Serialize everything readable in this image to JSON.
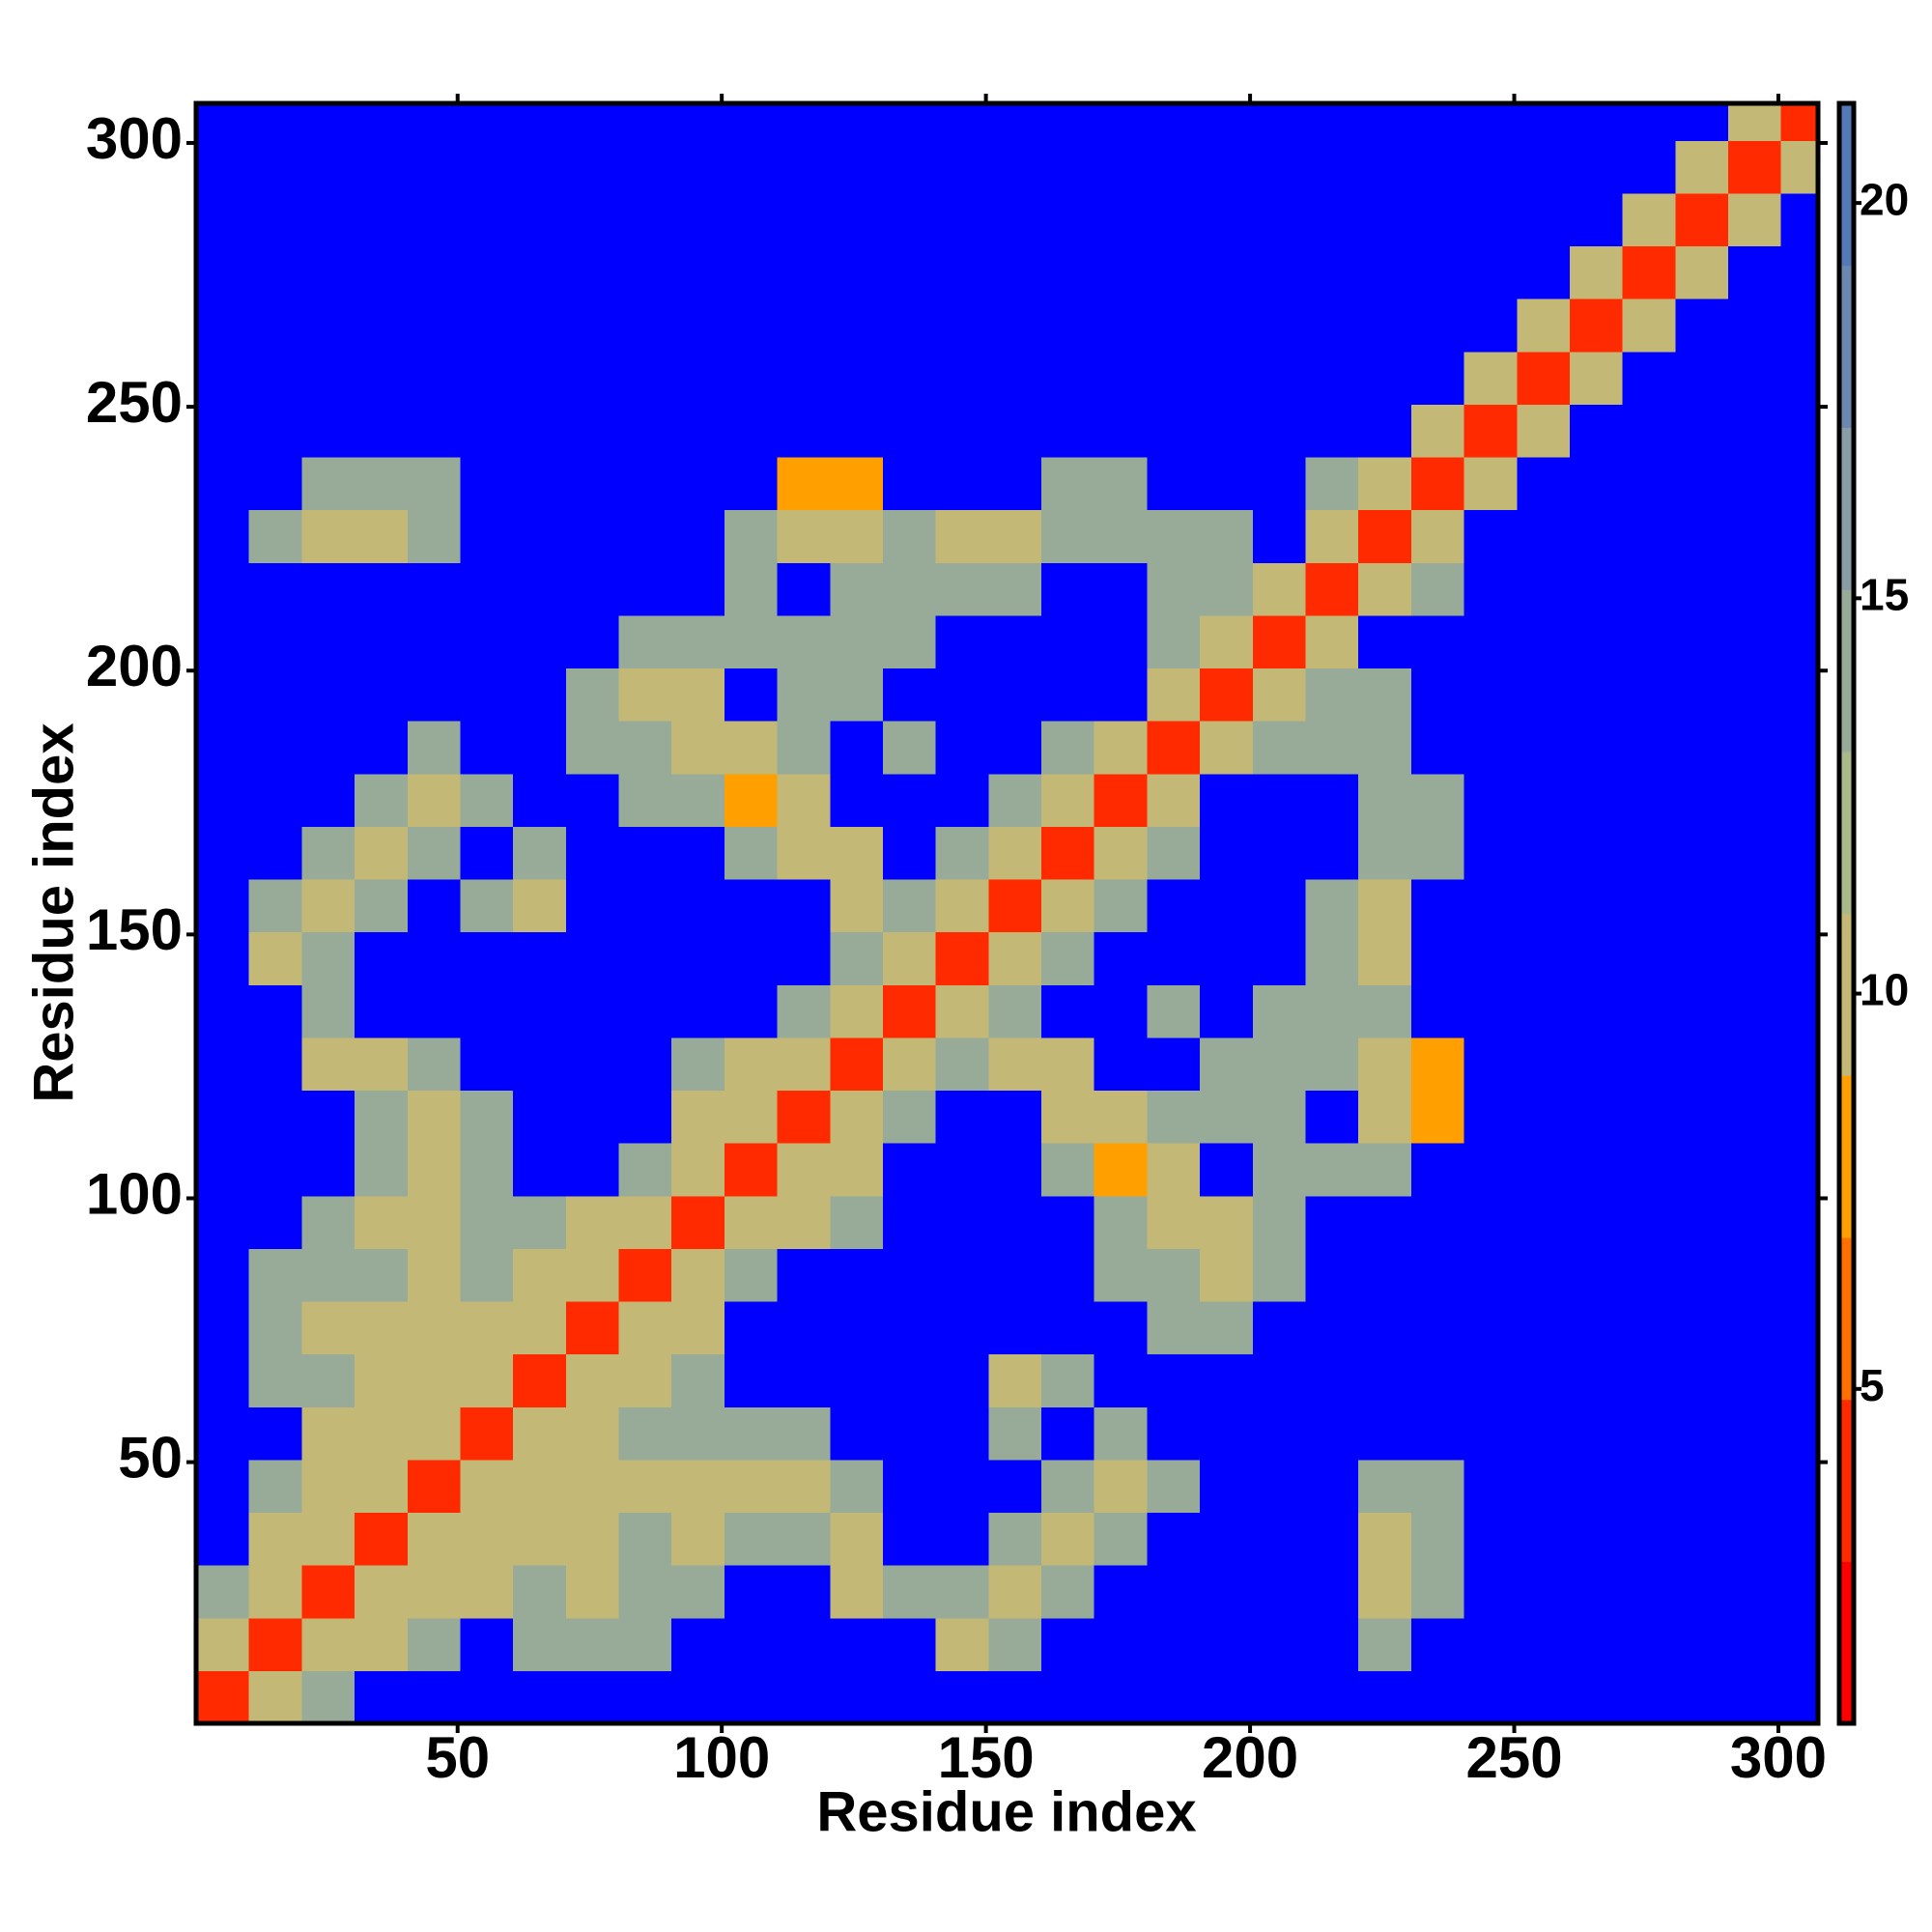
{
  "chart_data": {
    "type": "heatmap",
    "xlabel": "Residue index",
    "ylabel": "Residue index",
    "xbins": [
      0.5,
      10.5,
      20.5,
      30.5,
      40.5,
      50.5,
      60.5,
      70.5,
      80.5,
      90.5,
      100.5,
      110.5,
      120.5,
      130.5,
      140.5,
      150.5,
      160.5,
      170.5,
      180.5,
      190.5,
      200.5,
      210.5,
      220.5,
      230.5,
      240.5,
      250.5,
      260.5,
      270.5,
      280.5,
      290.5,
      300.5,
      307.5
    ],
    "ybins": [
      0.5,
      10.5,
      20.5,
      30.5,
      40.5,
      50.5,
      60.5,
      70.5,
      80.5,
      90.5,
      100.5,
      110.5,
      120.5,
      130.5,
      140.5,
      150.5,
      160.5,
      170.5,
      180.5,
      190.5,
      200.5,
      210.5,
      220.5,
      230.5,
      240.5,
      250.5,
      260.5,
      270.5,
      280.5,
      290.5,
      300.5,
      307.5
    ],
    "xlim": [
      0.5,
      307.5
    ],
    "ylim": [
      0.5,
      307.5
    ],
    "xticks": [
      50,
      100,
      150,
      200,
      250,
      300
    ],
    "yticks": [
      50,
      100,
      150,
      200,
      250,
      300
    ],
    "zlim": [
      0.77,
      21.26
    ],
    "zticks": [
      5,
      10,
      15,
      20
    ],
    "colorscale": [
      "#ff0000",
      "#ff2a00",
      "#ff7000",
      "#ffa000",
      "#c4b876",
      "#a9b98a",
      "#98ab98",
      "#8a9ca6",
      "#6d88b0",
      "#5579b6"
    ],
    "over_color": "#0000ff",
    "z": [
      [
        3,
        11,
        15,
        22,
        22,
        22,
        22,
        22,
        22,
        22,
        22,
        22,
        22,
        22,
        22,
        22,
        22,
        22,
        22,
        22,
        22,
        22,
        22,
        22,
        22,
        22,
        22,
        22,
        22,
        22,
        22
      ],
      [
        11,
        3,
        11,
        11,
        15,
        22,
        15,
        15,
        15,
        22,
        22,
        22,
        22,
        22,
        11,
        15,
        22,
        22,
        22,
        22,
        22,
        22,
        15,
        22,
        22,
        22,
        22,
        22,
        22,
        22,
        22
      ],
      [
        15,
        11,
        3,
        11,
        11,
        11,
        15,
        11,
        15,
        15,
        22,
        22,
        11,
        15,
        15,
        11,
        15,
        22,
        22,
        22,
        22,
        22,
        11,
        15,
        22,
        22,
        22,
        22,
        22,
        22,
        22
      ],
      [
        22,
        11,
        11,
        3,
        11,
        11,
        11,
        11,
        15,
        11,
        15,
        15,
        11,
        22,
        22,
        15,
        11,
        15,
        22,
        22,
        22,
        22,
        11,
        15,
        22,
        22,
        22,
        22,
        22,
        22,
        22
      ],
      [
        22,
        15,
        11,
        11,
        3,
        11,
        11,
        11,
        11,
        11,
        11,
        11,
        15,
        22,
        22,
        22,
        15,
        11,
        15,
        22,
        22,
        22,
        15,
        15,
        22,
        22,
        22,
        22,
        22,
        22,
        22
      ],
      [
        22,
        22,
        11,
        11,
        11,
        3,
        11,
        11,
        15,
        15,
        15,
        15,
        22,
        22,
        22,
        15,
        22,
        15,
        22,
        22,
        22,
        22,
        22,
        22,
        22,
        22,
        22,
        22,
        22,
        22,
        22
      ],
      [
        22,
        15,
        15,
        11,
        11,
        11,
        3,
        11,
        11,
        15,
        22,
        22,
        22,
        22,
        22,
        11,
        15,
        22,
        22,
        22,
        22,
        22,
        22,
        22,
        22,
        22,
        22,
        22,
        22,
        22,
        22
      ],
      [
        22,
        15,
        11,
        11,
        11,
        11,
        11,
        3,
        11,
        11,
        22,
        22,
        22,
        22,
        22,
        22,
        22,
        22,
        15,
        15,
        22,
        22,
        22,
        22,
        22,
        22,
        22,
        22,
        22,
        22,
        22
      ],
      [
        22,
        15,
        15,
        15,
        11,
        15,
        11,
        11,
        3,
        11,
        15,
        22,
        22,
        22,
        22,
        22,
        22,
        15,
        15,
        11,
        15,
        22,
        22,
        22,
        22,
        22,
        22,
        22,
        22,
        22,
        22
      ],
      [
        22,
        22,
        15,
        11,
        11,
        15,
        15,
        11,
        11,
        3,
        11,
        11,
        15,
        22,
        22,
        22,
        22,
        15,
        11,
        11,
        15,
        22,
        22,
        22,
        22,
        22,
        22,
        22,
        22,
        22,
        22
      ],
      [
        22,
        22,
        22,
        15,
        11,
        15,
        22,
        22,
        15,
        11,
        3,
        11,
        11,
        22,
        22,
        22,
        15,
        7,
        11,
        22,
        15,
        15,
        15,
        22,
        22,
        22,
        22,
        22,
        22,
        22,
        22
      ],
      [
        22,
        22,
        22,
        15,
        11,
        15,
        22,
        22,
        22,
        11,
        11,
        3,
        11,
        15,
        22,
        22,
        11,
        11,
        15,
        15,
        15,
        22,
        11,
        7,
        22,
        22,
        22,
        22,
        22,
        22,
        22
      ],
      [
        22,
        22,
        11,
        11,
        15,
        22,
        22,
        22,
        22,
        15,
        11,
        11,
        3,
        11,
        15,
        11,
        11,
        22,
        22,
        15,
        15,
        15,
        11,
        7,
        22,
        22,
        22,
        22,
        22,
        22,
        22
      ],
      [
        22,
        22,
        15,
        22,
        22,
        22,
        22,
        22,
        22,
        22,
        22,
        15,
        11,
        3,
        11,
        15,
        22,
        22,
        15,
        22,
        15,
        15,
        15,
        22,
        22,
        22,
        22,
        22,
        22,
        22,
        22
      ],
      [
        22,
        11,
        15,
        22,
        22,
        22,
        22,
        22,
        22,
        22,
        22,
        22,
        15,
        11,
        3,
        11,
        15,
        22,
        22,
        22,
        22,
        15,
        11,
        22,
        22,
        22,
        22,
        22,
        22,
        22,
        22
      ],
      [
        22,
        15,
        11,
        15,
        22,
        15,
        11,
        22,
        22,
        22,
        22,
        22,
        11,
        15,
        11,
        3,
        11,
        15,
        22,
        22,
        22,
        15,
        11,
        22,
        22,
        22,
        22,
        22,
        22,
        22,
        22
      ],
      [
        22,
        22,
        15,
        11,
        15,
        22,
        15,
        22,
        22,
        22,
        15,
        11,
        11,
        22,
        15,
        11,
        3,
        11,
        15,
        22,
        22,
        22,
        15,
        15,
        22,
        22,
        22,
        22,
        22,
        22,
        22
      ],
      [
        22,
        22,
        22,
        15,
        11,
        15,
        22,
        22,
        15,
        15,
        7,
        11,
        22,
        22,
        22,
        15,
        11,
        3,
        11,
        22,
        22,
        22,
        15,
        15,
        22,
        22,
        22,
        22,
        22,
        22,
        22
      ],
      [
        22,
        22,
        22,
        22,
        15,
        22,
        22,
        15,
        15,
        11,
        11,
        15,
        22,
        15,
        22,
        22,
        15,
        11,
        3,
        11,
        15,
        15,
        15,
        22,
        22,
        22,
        22,
        22,
        22,
        22,
        22
      ],
      [
        22,
        22,
        22,
        22,
        22,
        22,
        22,
        15,
        11,
        11,
        22,
        15,
        15,
        22,
        22,
        22,
        22,
        22,
        11,
        3,
        11,
        15,
        15,
        22,
        22,
        22,
        22,
        22,
        22,
        22,
        22
      ],
      [
        22,
        22,
        22,
        22,
        22,
        22,
        22,
        22,
        15,
        15,
        15,
        15,
        15,
        15,
        22,
        22,
        22,
        22,
        15,
        11,
        3,
        11,
        22,
        22,
        22,
        22,
        22,
        22,
        22,
        22,
        22
      ],
      [
        22,
        22,
        22,
        22,
        22,
        22,
        22,
        22,
        22,
        22,
        15,
        22,
        15,
        15,
        15,
        15,
        22,
        22,
        15,
        15,
        11,
        3,
        11,
        15,
        22,
        22,
        22,
        22,
        22,
        22,
        22
      ],
      [
        22,
        15,
        11,
        11,
        15,
        22,
        22,
        22,
        22,
        22,
        15,
        11,
        11,
        15,
        11,
        11,
        15,
        15,
        15,
        15,
        22,
        11,
        3,
        11,
        22,
        22,
        22,
        22,
        22,
        22,
        22
      ],
      [
        22,
        22,
        15,
        15,
        15,
        22,
        22,
        22,
        22,
        22,
        22,
        7,
        7,
        22,
        22,
        22,
        15,
        15,
        22,
        22,
        22,
        15,
        11,
        3,
        11,
        22,
        22,
        22,
        22,
        22,
        22
      ],
      [
        22,
        22,
        22,
        22,
        22,
        22,
        22,
        22,
        22,
        22,
        22,
        22,
        22,
        22,
        22,
        22,
        22,
        22,
        22,
        22,
        22,
        22,
        22,
        11,
        3,
        11,
        22,
        22,
        22,
        22,
        22
      ],
      [
        22,
        22,
        22,
        22,
        22,
        22,
        22,
        22,
        22,
        22,
        22,
        22,
        22,
        22,
        22,
        22,
        22,
        22,
        22,
        22,
        22,
        22,
        22,
        22,
        11,
        3,
        11,
        22,
        22,
        22,
        22
      ],
      [
        22,
        22,
        22,
        22,
        22,
        22,
        22,
        22,
        22,
        22,
        22,
        22,
        22,
        22,
        22,
        22,
        22,
        22,
        22,
        22,
        22,
        22,
        22,
        22,
        22,
        11,
        3,
        11,
        22,
        22,
        22
      ],
      [
        22,
        22,
        22,
        22,
        22,
        22,
        22,
        22,
        22,
        22,
        22,
        22,
        22,
        22,
        22,
        22,
        22,
        22,
        22,
        22,
        22,
        22,
        22,
        22,
        22,
        22,
        11,
        3,
        11,
        22,
        22
      ],
      [
        22,
        22,
        22,
        22,
        22,
        22,
        22,
        22,
        22,
        22,
        22,
        22,
        22,
        22,
        22,
        22,
        22,
        22,
        22,
        22,
        22,
        22,
        22,
        22,
        22,
        22,
        22,
        11,
        3,
        11,
        22
      ],
      [
        22,
        22,
        22,
        22,
        22,
        22,
        22,
        22,
        22,
        22,
        22,
        22,
        22,
        22,
        22,
        22,
        22,
        22,
        22,
        22,
        22,
        22,
        22,
        22,
        22,
        22,
        22,
        22,
        11,
        3,
        11
      ],
      [
        22,
        22,
        22,
        22,
        22,
        22,
        22,
        22,
        22,
        22,
        22,
        22,
        22,
        22,
        22,
        22,
        22,
        22,
        22,
        22,
        22,
        22,
        22,
        22,
        22,
        22,
        22,
        22,
        22,
        11,
        3
      ]
    ]
  }
}
